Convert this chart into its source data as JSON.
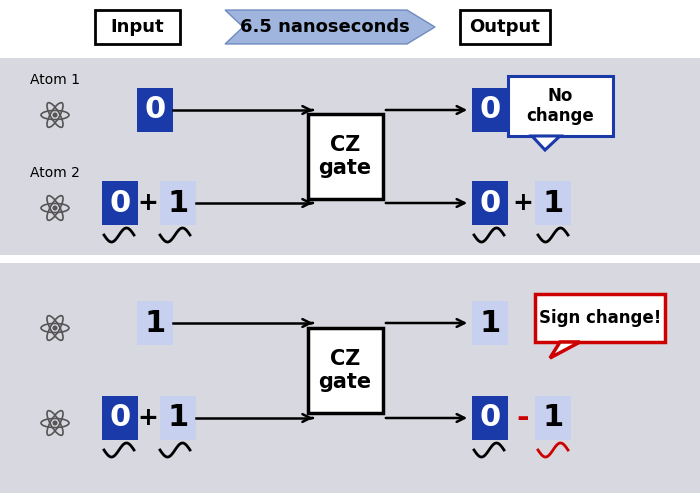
{
  "bg_color": "#e0e0e8",
  "white": "#ffffff",
  "blue_dark": "#1a3aaa",
  "blue_light": "#c8d0f0",
  "arrow_fill": "#8fa8d8",
  "arrow_edge": "#6080b8",
  "red": "#cc0000",
  "black": "#000000",
  "gray_panel": "#d8d8e0",
  "separator": "#b0b0b8",
  "gate_label": "CZ\ngate",
  "no_change_label": "No\nchange",
  "sign_change_label": "Sign change!",
  "input_label": "Input",
  "output_label": "Output",
  "arrow_label": "6.5 nanoseconds",
  "atom1_label": "Atom 1",
  "atom2_label": "Atom 2"
}
